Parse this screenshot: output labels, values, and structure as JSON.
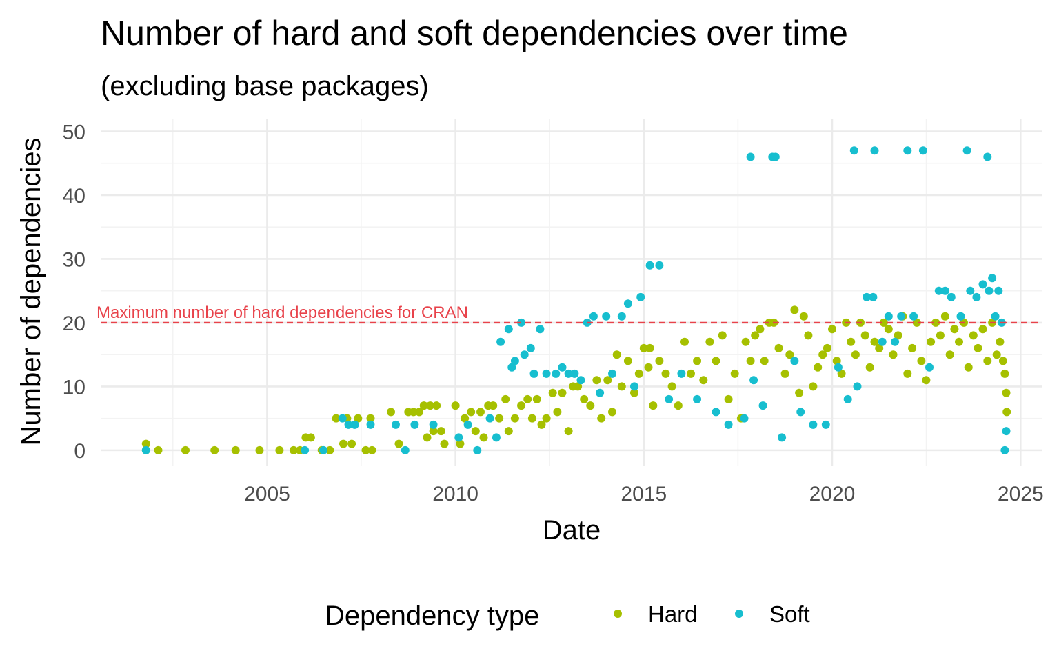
{
  "chart_data": {
    "type": "scatter",
    "title": "Number of hard and soft dependencies over time",
    "subtitle": "(excluding base packages)",
    "xlabel": "Date",
    "ylabel": "Number of dependencies",
    "x_ticks": [
      "2005",
      "2010",
      "2015",
      "2020",
      "2025"
    ],
    "y_ticks": [
      "0",
      "10",
      "20",
      "30",
      "40",
      "50"
    ],
    "xlim": [
      "2000-08-01",
      "2025-08-01"
    ],
    "ylim": [
      -2.5,
      52
    ],
    "grid": true,
    "legend": {
      "title": "Dependency type",
      "position": "bottom"
    },
    "reference_line": {
      "y": 20,
      "label": "Maximum number of hard dependencies for CRAN",
      "color": "#E8424A",
      "style": "dashed"
    },
    "series": [
      {
        "name": "Hard",
        "color": "#A6C000",
        "points": [
          [
            "2001-10-15",
            1
          ],
          [
            "2001-10-15",
            0
          ],
          [
            "2002-02-10",
            0
          ],
          [
            "2002-11-01",
            0
          ],
          [
            "2003-08-10",
            0
          ],
          [
            "2004-03-01",
            0
          ],
          [
            "2004-10-20",
            0
          ],
          [
            "2005-05-01",
            0
          ],
          [
            "2005-09-15",
            0
          ],
          [
            "2005-11-15",
            0
          ],
          [
            "2006-01-10",
            2
          ],
          [
            "2006-03-01",
            2
          ],
          [
            "2006-06-15",
            0
          ],
          [
            "2006-09-01",
            0
          ],
          [
            "2006-11-01",
            5
          ],
          [
            "2007-01-10",
            1
          ],
          [
            "2007-02-15",
            5
          ],
          [
            "2007-04-01",
            1
          ],
          [
            "2007-06-01",
            5
          ],
          [
            "2007-08-15",
            0
          ],
          [
            "2007-10-01",
            5
          ],
          [
            "2007-10-15",
            0
          ],
          [
            "2008-04-15",
            6
          ],
          [
            "2008-07-01",
            1
          ],
          [
            "2008-10-01",
            6
          ],
          [
            "2008-11-20",
            6
          ],
          [
            "2009-01-15",
            6
          ],
          [
            "2009-03-01",
            7
          ],
          [
            "2009-04-01",
            2
          ],
          [
            "2009-05-01",
            7
          ],
          [
            "2009-06-01",
            3
          ],
          [
            "2009-07-01",
            7
          ],
          [
            "2009-08-15",
            3
          ],
          [
            "2009-09-15",
            1
          ],
          [
            "2010-01-01",
            7
          ],
          [
            "2010-02-15",
            1
          ],
          [
            "2010-04-01",
            5
          ],
          [
            "2010-06-01",
            6
          ],
          [
            "2010-07-15",
            3
          ],
          [
            "2010-09-01",
            6
          ],
          [
            "2010-10-01",
            2
          ],
          [
            "2010-11-15",
            7
          ],
          [
            "2011-01-01",
            7
          ],
          [
            "2011-03-01",
            5
          ],
          [
            "2011-05-01",
            8
          ],
          [
            "2011-06-01",
            3
          ],
          [
            "2011-08-01",
            5
          ],
          [
            "2011-10-01",
            7
          ],
          [
            "2011-12-01",
            8
          ],
          [
            "2012-01-15",
            5
          ],
          [
            "2012-03-01",
            8
          ],
          [
            "2012-04-15",
            4
          ],
          [
            "2012-06-01",
            5
          ],
          [
            "2012-08-01",
            9
          ],
          [
            "2012-09-15",
            6
          ],
          [
            "2012-11-01",
            9
          ],
          [
            "2013-01-01",
            3
          ],
          [
            "2013-02-15",
            10
          ],
          [
            "2013-04-01",
            10
          ],
          [
            "2013-06-01",
            8
          ],
          [
            "2013-08-01",
            7
          ],
          [
            "2013-10-01",
            11
          ],
          [
            "2013-11-15",
            5
          ],
          [
            "2014-01-15",
            11
          ],
          [
            "2014-03-01",
            6
          ],
          [
            "2014-04-15",
            15
          ],
          [
            "2014-06-01",
            10
          ],
          [
            "2014-08-01",
            14
          ],
          [
            "2014-10-01",
            9
          ],
          [
            "2014-11-15",
            12
          ],
          [
            "2015-01-01",
            16
          ],
          [
            "2015-02-15",
            13
          ],
          [
            "2015-03-01",
            16
          ],
          [
            "2015-04-01",
            7
          ],
          [
            "2015-06-01",
            14
          ],
          [
            "2015-08-01",
            12
          ],
          [
            "2015-10-01",
            10
          ],
          [
            "2015-12-01",
            7
          ],
          [
            "2016-02-01",
            17
          ],
          [
            "2016-04-01",
            12
          ],
          [
            "2016-06-01",
            14
          ],
          [
            "2016-08-01",
            11
          ],
          [
            "2016-10-01",
            17
          ],
          [
            "2016-12-01",
            14
          ],
          [
            "2017-02-01",
            18
          ],
          [
            "2017-04-01",
            8
          ],
          [
            "2017-06-01",
            12
          ],
          [
            "2017-08-01",
            5
          ],
          [
            "2017-09-15",
            17
          ],
          [
            "2017-11-01",
            14
          ],
          [
            "2017-12-15",
            18
          ],
          [
            "2018-02-01",
            19
          ],
          [
            "2018-03-15",
            14
          ],
          [
            "2018-05-01",
            20
          ],
          [
            "2018-06-15",
            20
          ],
          [
            "2018-08-01",
            16
          ],
          [
            "2018-10-01",
            12
          ],
          [
            "2018-11-15",
            15
          ],
          [
            "2019-01-01",
            22
          ],
          [
            "2019-02-15",
            9
          ],
          [
            "2019-04-01",
            21
          ],
          [
            "2019-05-15",
            18
          ],
          [
            "2019-07-01",
            10
          ],
          [
            "2019-08-15",
            13
          ],
          [
            "2019-10-01",
            15
          ],
          [
            "2019-11-15",
            16
          ],
          [
            "2020-01-01",
            19
          ],
          [
            "2020-02-15",
            14
          ],
          [
            "2020-04-01",
            12
          ],
          [
            "2020-05-15",
            20
          ],
          [
            "2020-07-01",
            17
          ],
          [
            "2020-08-15",
            15
          ],
          [
            "2020-10-01",
            20
          ],
          [
            "2020-11-15",
            18
          ],
          [
            "2021-01-01",
            13
          ],
          [
            "2021-02-15",
            17
          ],
          [
            "2021-04-01",
            16
          ],
          [
            "2021-05-15",
            20
          ],
          [
            "2021-07-01",
            19
          ],
          [
            "2021-08-15",
            15
          ],
          [
            "2021-10-01",
            18
          ],
          [
            "2021-11-15",
            21
          ],
          [
            "2022-01-01",
            12
          ],
          [
            "2022-02-15",
            16
          ],
          [
            "2022-04-01",
            20
          ],
          [
            "2022-05-15",
            14
          ],
          [
            "2022-07-01",
            11
          ],
          [
            "2022-08-15",
            17
          ],
          [
            "2022-10-01",
            20
          ],
          [
            "2022-11-15",
            18
          ],
          [
            "2023-01-01",
            21
          ],
          [
            "2023-02-15",
            15
          ],
          [
            "2023-04-01",
            19
          ],
          [
            "2023-05-15",
            17
          ],
          [
            "2023-07-01",
            20
          ],
          [
            "2023-08-15",
            13
          ],
          [
            "2023-10-01",
            18
          ],
          [
            "2023-11-15",
            16
          ],
          [
            "2024-01-01",
            19
          ],
          [
            "2024-02-15",
            14
          ],
          [
            "2024-04-01",
            20
          ],
          [
            "2024-05-15",
            15
          ],
          [
            "2024-06-15",
            17
          ],
          [
            "2024-07-15",
            14
          ],
          [
            "2024-08-01",
            12
          ],
          [
            "2024-08-15",
            9
          ],
          [
            "2024-08-20",
            6
          ]
        ]
      },
      {
        "name": "Soft",
        "color": "#17BECF",
        "points": [
          [
            "2001-10-15",
            0
          ],
          [
            "2006-01-01",
            0
          ],
          [
            "2006-07-01",
            0
          ],
          [
            "2007-01-01",
            5
          ],
          [
            "2007-03-01",
            4
          ],
          [
            "2007-05-01",
            4
          ],
          [
            "2007-10-01",
            4
          ],
          [
            "2008-06-01",
            4
          ],
          [
            "2008-09-01",
            0
          ],
          [
            "2008-12-01",
            4
          ],
          [
            "2009-06-01",
            4
          ],
          [
            "2010-02-01",
            2
          ],
          [
            "2010-05-01",
            4
          ],
          [
            "2010-08-01",
            0
          ],
          [
            "2010-12-01",
            5
          ],
          [
            "2011-02-01",
            2
          ],
          [
            "2011-03-15",
            17
          ],
          [
            "2011-06-01",
            19
          ],
          [
            "2011-07-01",
            13
          ],
          [
            "2011-08-01",
            14
          ],
          [
            "2011-10-01",
            20
          ],
          [
            "2011-11-01",
            15
          ],
          [
            "2012-01-01",
            16
          ],
          [
            "2012-02-01",
            12
          ],
          [
            "2012-04-01",
            19
          ],
          [
            "2012-06-01",
            12
          ],
          [
            "2012-09-01",
            12
          ],
          [
            "2012-11-01",
            13
          ],
          [
            "2013-01-01",
            12
          ],
          [
            "2013-03-01",
            12
          ],
          [
            "2013-05-01",
            11
          ],
          [
            "2013-07-01",
            20
          ],
          [
            "2013-09-01",
            21
          ],
          [
            "2013-11-01",
            9
          ],
          [
            "2014-01-01",
            21
          ],
          [
            "2014-03-01",
            12
          ],
          [
            "2014-06-01",
            21
          ],
          [
            "2014-08-01",
            23
          ],
          [
            "2014-10-01",
            10
          ],
          [
            "2014-12-01",
            24
          ],
          [
            "2015-03-01",
            29
          ],
          [
            "2015-06-01",
            29
          ],
          [
            "2015-09-01",
            8
          ],
          [
            "2016-01-01",
            12
          ],
          [
            "2016-06-01",
            8
          ],
          [
            "2016-12-01",
            6
          ],
          [
            "2017-04-01",
            4
          ],
          [
            "2017-09-01",
            5
          ],
          [
            "2017-11-01",
            46
          ],
          [
            "2017-12-01",
            11
          ],
          [
            "2018-03-01",
            7
          ],
          [
            "2018-06-01",
            46
          ],
          [
            "2018-07-01",
            46
          ],
          [
            "2018-09-01",
            2
          ],
          [
            "2019-01-01",
            14
          ],
          [
            "2019-03-01",
            6
          ],
          [
            "2019-07-01",
            4
          ],
          [
            "2019-11-01",
            4
          ],
          [
            "2020-03-01",
            13
          ],
          [
            "2020-06-01",
            8
          ],
          [
            "2020-08-01",
            47
          ],
          [
            "2020-09-01",
            10
          ],
          [
            "2020-12-01",
            24
          ],
          [
            "2021-02-01",
            24
          ],
          [
            "2021-02-15",
            47
          ],
          [
            "2021-05-01",
            17
          ],
          [
            "2021-07-01",
            21
          ],
          [
            "2021-09-01",
            17
          ],
          [
            "2021-11-01",
            21
          ],
          [
            "2022-01-01",
            47
          ],
          [
            "2022-03-01",
            21
          ],
          [
            "2022-06-01",
            47
          ],
          [
            "2022-08-01",
            13
          ],
          [
            "2022-11-01",
            25
          ],
          [
            "2023-01-01",
            25
          ],
          [
            "2023-03-01",
            24
          ],
          [
            "2023-06-01",
            21
          ],
          [
            "2023-08-01",
            47
          ],
          [
            "2023-09-01",
            25
          ],
          [
            "2023-11-01",
            24
          ],
          [
            "2024-01-01",
            26
          ],
          [
            "2024-02-15",
            46
          ],
          [
            "2024-03-01",
            25
          ],
          [
            "2024-04-01",
            27
          ],
          [
            "2024-05-01",
            21
          ],
          [
            "2024-06-01",
            25
          ],
          [
            "2024-07-01",
            20
          ],
          [
            "2024-08-01",
            0
          ],
          [
            "2024-08-15",
            3
          ]
        ]
      }
    ]
  }
}
